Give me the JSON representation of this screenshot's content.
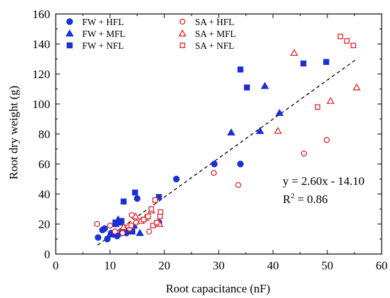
{
  "chart_data": {
    "type": "scatter",
    "xlabel": "Root capacitance (nF)",
    "ylabel": "Root dry weight (g)",
    "xlim": [
      0,
      60
    ],
    "ylim": [
      0,
      160
    ],
    "xticks": [
      0,
      10,
      20,
      30,
      40,
      50,
      60
    ],
    "yticks": [
      0,
      20,
      40,
      60,
      80,
      100,
      120,
      140,
      160
    ],
    "grid": false,
    "legend_position": "top-left",
    "annotation": {
      "equation": "y = 2.60x - 14.10",
      "r2_prefix": "R",
      "r2_sup": "2",
      "r2_suffix": " = 0.86"
    },
    "trendline": {
      "slope": 2.6,
      "intercept": -14.1,
      "x_range": [
        7.7,
        55.2
      ],
      "style": "dashed"
    },
    "colors": {
      "fw": "#1a2fd6",
      "sa": "#e0262b"
    },
    "series": [
      {
        "name": "FW + HFL",
        "marker": "circle",
        "filled": true,
        "color": "#1a2fd6",
        "x": [
          7.8,
          8.6,
          9.0,
          9.5,
          10.2,
          10.8,
          11.3,
          12.1,
          13.0,
          15.0,
          19.0,
          22.2,
          29.2,
          34.0
        ],
        "y": [
          11,
          16,
          17,
          10,
          14,
          13,
          12,
          14,
          14,
          37,
          21,
          50,
          60,
          60
        ]
      },
      {
        "name": "FW + MFL",
        "marker": "triangle",
        "filled": true,
        "color": "#1a2fd6",
        "x": [
          10.0,
          10.8,
          11.0,
          11.5,
          12.0,
          12.4,
          13.2,
          14.4,
          15.5,
          32.3,
          37.6,
          38.5,
          41.2
        ],
        "y": [
          13,
          20,
          20,
          23,
          21,
          15,
          16,
          19,
          14,
          81,
          82,
          112,
          94
        ]
      },
      {
        "name": "FW + NFL",
        "marker": "square",
        "filled": true,
        "color": "#1a2fd6",
        "x": [
          11.0,
          12.1,
          12.5,
          14.1,
          14.6,
          19.0,
          34.0,
          35.2,
          45.6,
          49.8
        ],
        "y": [
          21,
          22,
          35,
          15,
          41,
          38,
          123,
          111,
          127,
          128
        ]
      },
      {
        "name": "SA + HFL",
        "marker": "circle",
        "filled": false,
        "color": "#e0262b",
        "x": [
          7.6,
          10.0,
          10.9,
          12.3,
          13.6,
          14.0,
          14.8,
          17.2,
          29.1,
          33.6,
          45.7,
          49.9
        ],
        "y": [
          20,
          19,
          15,
          14,
          17,
          26,
          21,
          15,
          54,
          46,
          67,
          76
        ]
      },
      {
        "name": "SA + MFL",
        "marker": "triangle",
        "filled": false,
        "color": "#e0262b",
        "x": [
          12.5,
          13.4,
          14.7,
          15.7,
          16.5,
          17.6,
          19.1,
          40.9,
          43.9,
          50.6,
          55.4
        ],
        "y": [
          18,
          19,
          25,
          22,
          24,
          29,
          20,
          82,
          134,
          102,
          111
        ]
      },
      {
        "name": "SA + NFL",
        "marker": "square",
        "filled": false,
        "color": "#e0262b",
        "x": [
          13.9,
          16.2,
          17.0,
          17.6,
          17.9,
          18.3,
          18.6,
          19.2,
          19.3,
          48.2,
          52.4,
          53.6,
          54.8
        ],
        "y": [
          19,
          23,
          25,
          30,
          19,
          36,
          21,
          25,
          28,
          98,
          145,
          142,
          139
        ]
      }
    ]
  }
}
